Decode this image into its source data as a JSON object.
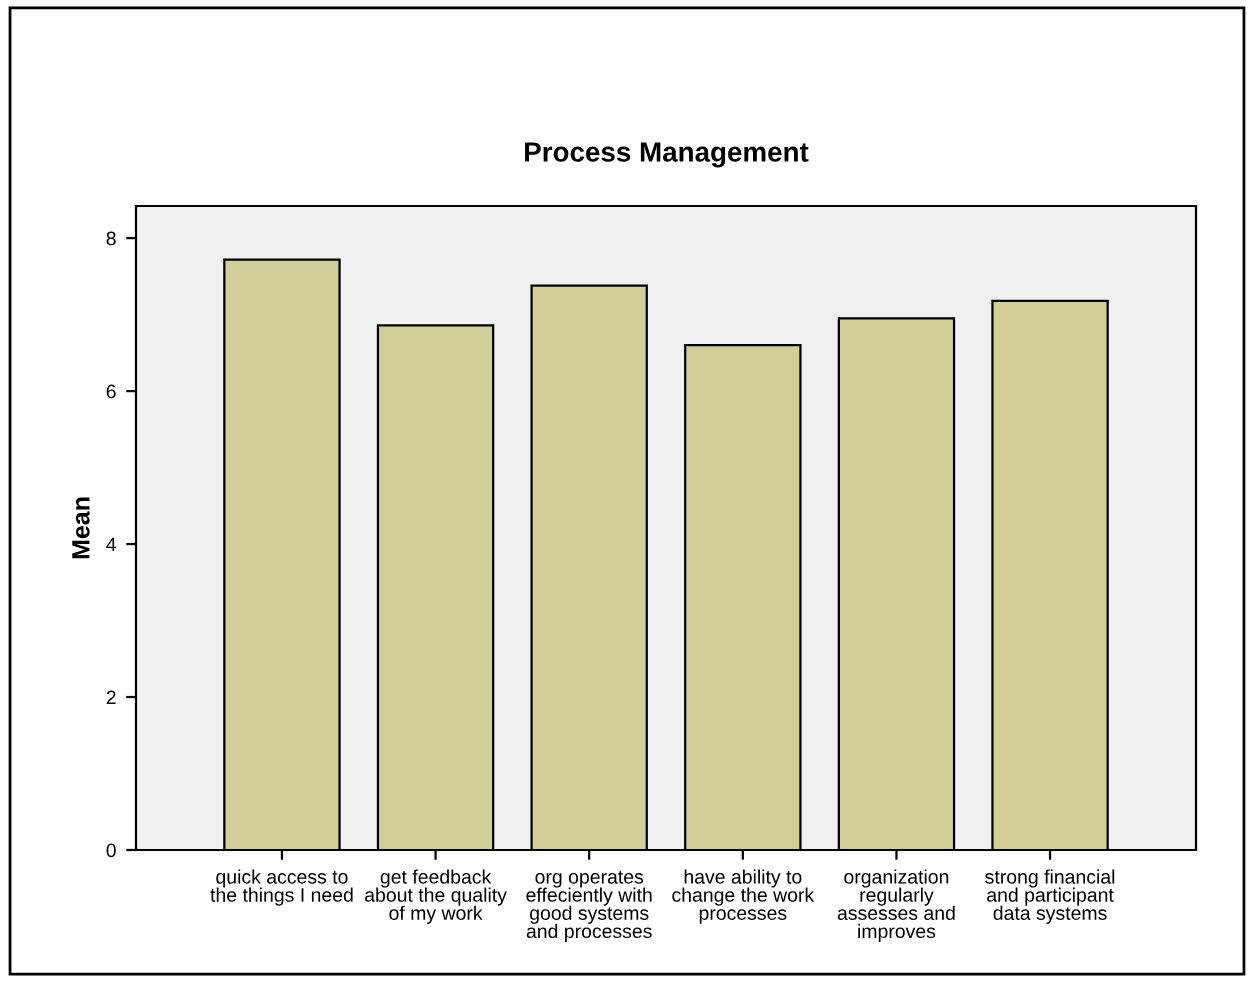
{
  "chart_data": {
    "type": "bar",
    "title": "Process Management",
    "ylabel": "Mean",
    "categories": [
      "quick access to\nthe things I need",
      "get feedback\nabout the quality\nof my work",
      "org operates\neffeciently with\ngood systems\nand processes",
      "have ability to\nchange the work\nprocesses",
      "organization\nregularly\nassesses and\nimproves",
      "strong financial\nand participant\ndata systems"
    ],
    "values": [
      7.72,
      6.86,
      7.38,
      6.6,
      6.95,
      7.18
    ],
    "color": "#d3ce97",
    "ylim": [
      0,
      8.42
    ],
    "yticks": [
      0,
      2,
      4,
      6,
      8
    ],
    "grid": false,
    "legend": false
  }
}
